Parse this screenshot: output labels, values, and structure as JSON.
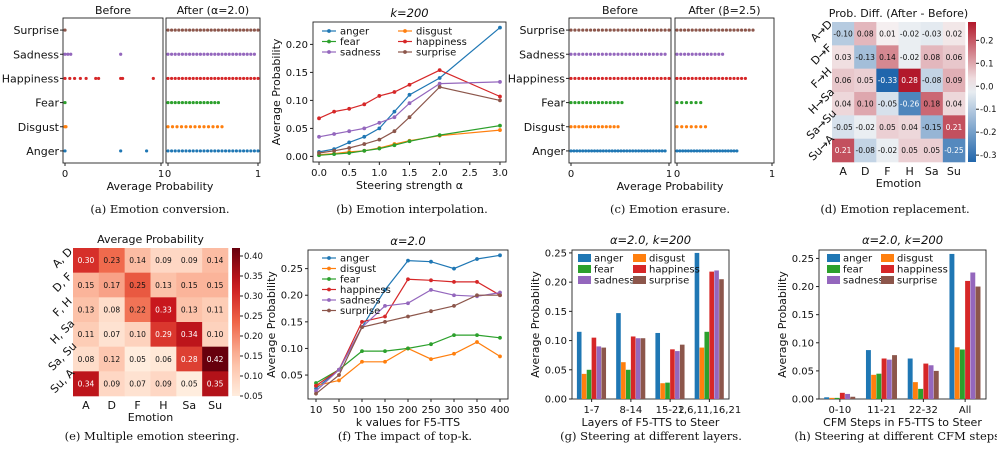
{
  "colors": {
    "anger": "#1f77b4",
    "disgust": "#ff7f0e",
    "fear": "#2ca02c",
    "happiness": "#d62728",
    "sadness": "#9467bd",
    "surprise": "#8c564b"
  },
  "chart_data": [
    {
      "id": "a",
      "type": "scatter",
      "caption": "(a) Emotion conversion.",
      "panel_titles": [
        "Before",
        "After (α=2.0)"
      ],
      "xlabel": "Average Probability",
      "categories": [
        "Anger",
        "Disgust",
        "Fear",
        "Happiness",
        "Sadness",
        "Surprise"
      ],
      "xlim": [
        0,
        1
      ],
      "xticks": [
        "0",
        "1"
      ],
      "before": {
        "Anger": [
          0.0,
          0.58,
          0.85
        ],
        "Disgust": [
          0.0,
          0.01
        ],
        "Fear": [
          0.0
        ],
        "Happiness": [
          0.0,
          0.05,
          0.1,
          0.16,
          0.22,
          0.32,
          0.35,
          0.58,
          0.6,
          0.92
        ],
        "Sadness": [
          0.0,
          0.03,
          0.06,
          0.58
        ],
        "Surprise": [
          0.0
        ]
      },
      "after": {
        "Anger": [
          0.0,
          0.04,
          0.08,
          0.12,
          0.16,
          0.2,
          0.24,
          0.28,
          0.32,
          0.36,
          0.4,
          0.44,
          0.48,
          0.52,
          0.56,
          0.6,
          0.64,
          0.68,
          0.72,
          0.76,
          0.8,
          0.84,
          0.88,
          0.92,
          0.96,
          1.0
        ],
        "Disgust": [
          0.0,
          0.05,
          0.1,
          0.15,
          0.2,
          0.25,
          0.3,
          0.35,
          0.4,
          0.45,
          0.5,
          0.55,
          0.6
        ],
        "Fear": [
          0.0,
          0.04,
          0.08,
          0.12,
          0.16,
          0.2,
          0.24,
          0.28,
          0.32,
          0.36,
          0.4,
          0.44,
          0.48,
          0.52,
          0.56
        ],
        "Happiness": [
          0.0,
          0.04,
          0.08,
          0.12,
          0.16,
          0.2,
          0.24,
          0.28,
          0.32,
          0.36,
          0.4,
          0.44,
          0.48,
          0.52,
          0.56,
          0.6,
          0.64,
          0.68,
          0.72,
          0.76,
          0.8,
          0.84,
          0.88,
          0.92,
          0.96,
          1.0
        ],
        "Sadness": [
          0.0,
          0.04,
          0.08,
          0.12,
          0.16,
          0.2,
          0.24,
          0.28,
          0.32,
          0.36,
          0.4,
          0.44,
          0.48,
          0.52,
          0.56,
          0.6,
          0.64,
          0.68,
          0.72,
          0.76,
          0.8,
          0.84,
          0.88,
          0.92,
          0.96
        ],
        "Surprise": [
          0.0,
          0.04,
          0.08,
          0.12,
          0.16,
          0.2,
          0.24,
          0.28,
          0.32,
          0.36,
          0.4,
          0.44,
          0.48,
          0.52,
          0.56,
          0.6,
          0.64,
          0.68,
          0.72,
          0.76,
          0.8,
          0.84,
          0.88,
          0.92,
          0.96,
          1.0
        ]
      }
    },
    {
      "id": "b",
      "type": "line",
      "title": "k=200",
      "caption": "(b) Emotion interpolation.",
      "xlabel": "Steering strength α",
      "ylabel": "Average Probability",
      "x": [
        0.0,
        0.25,
        0.5,
        0.75,
        1.0,
        1.25,
        1.5,
        2.0,
        3.0
      ],
      "xticks": [
        "0.0",
        "0.5",
        "1.0",
        "1.5",
        "2.0",
        "2.5",
        "3.0"
      ],
      "xlim": [
        -0.1,
        3.1
      ],
      "yticks": [
        "0.00",
        "0.05",
        "0.10",
        "0.15",
        "0.20"
      ],
      "ylim": [
        -0.01,
        0.24
      ],
      "series": [
        {
          "name": "anger",
          "values": [
            0.008,
            0.013,
            0.025,
            0.035,
            0.05,
            0.08,
            0.11,
            0.14,
            0.23
          ]
        },
        {
          "name": "disgust",
          "values": [
            0.003,
            0.005,
            0.008,
            0.01,
            0.015,
            0.022,
            0.028,
            0.037,
            0.047
          ]
        },
        {
          "name": "fear",
          "values": [
            0.002,
            0.004,
            0.006,
            0.01,
            0.014,
            0.02,
            0.027,
            0.038,
            0.055
          ]
        },
        {
          "name": "happiness",
          "values": [
            0.068,
            0.08,
            0.085,
            0.093,
            0.108,
            0.115,
            0.128,
            0.154,
            0.107
          ]
        },
        {
          "name": "sadness",
          "values": [
            0.035,
            0.04,
            0.045,
            0.05,
            0.06,
            0.07,
            0.095,
            0.13,
            0.133
          ]
        },
        {
          "name": "surprise",
          "values": [
            0.006,
            0.01,
            0.015,
            0.022,
            0.03,
            0.045,
            0.07,
            0.124,
            0.1
          ]
        }
      ],
      "legend": [
        "anger",
        "disgust",
        "fear",
        "happiness",
        "sadness",
        "surprise"
      ]
    },
    {
      "id": "c",
      "type": "scatter",
      "caption": "(c) Emotion erasure.",
      "panel_titles": [
        "Before",
        "After (β=2.5)"
      ],
      "xlabel": "Average Probability",
      "categories": [
        "Anger",
        "Disgust",
        "Fear",
        "Happiness",
        "Sadness",
        "Surprise"
      ],
      "xlim": [
        0,
        1
      ],
      "xticks": [
        "0",
        "1"
      ],
      "before": {
        "Anger": [
          0.0,
          0.03,
          0.06,
          0.09,
          0.12,
          0.15,
          0.18,
          0.21,
          0.24,
          0.27,
          0.3,
          0.33,
          0.36,
          0.39,
          0.42,
          0.45,
          0.48,
          0.51,
          0.54,
          0.57,
          0.6,
          0.63,
          0.66,
          0.69,
          0.72,
          0.75,
          0.78,
          0.81,
          0.84,
          0.87,
          0.9,
          0.93,
          0.96
        ],
        "Disgust": [
          0.0,
          0.04,
          0.08,
          0.12,
          0.16,
          0.2,
          0.24,
          0.28,
          0.32,
          0.36,
          0.4,
          0.44,
          0.48
        ],
        "Fear": [
          0.0,
          0.04,
          0.08,
          0.12,
          0.16,
          0.2,
          0.24,
          0.28,
          0.32,
          0.36,
          0.4,
          0.44,
          0.48,
          0.52
        ],
        "Happiness": [
          0.0,
          0.04,
          0.08,
          0.12,
          0.16,
          0.2,
          0.24,
          0.28,
          0.32,
          0.36,
          0.4,
          0.44,
          0.48,
          0.52,
          0.56,
          0.6,
          0.64,
          0.68,
          0.72,
          0.76,
          0.8,
          0.84,
          0.88,
          0.92,
          0.96,
          1.0
        ],
        "Sadness": [
          0.0,
          0.04,
          0.08,
          0.12,
          0.16,
          0.2,
          0.24,
          0.28,
          0.32,
          0.36,
          0.4,
          0.44,
          0.48,
          0.52,
          0.56,
          0.6,
          0.64,
          0.68,
          0.72,
          0.76,
          0.8,
          0.84,
          0.88,
          0.92,
          0.96
        ],
        "Surprise": [
          0.0,
          0.04,
          0.08,
          0.12,
          0.16,
          0.2,
          0.24,
          0.28,
          0.32,
          0.36,
          0.4,
          0.44,
          0.48,
          0.52,
          0.56,
          0.6,
          0.64,
          0.68,
          0.72,
          0.76,
          0.8,
          0.84,
          0.88,
          0.92,
          0.96,
          1.0
        ]
      },
      "after": {
        "Anger": [
          0.0,
          0.03,
          0.06,
          0.09,
          0.12,
          0.15,
          0.18,
          0.21,
          0.24,
          0.27,
          0.3,
          0.33,
          0.36,
          0.39,
          0.42,
          0.45,
          0.48,
          0.51,
          0.54,
          0.57,
          0.6,
          0.63
        ],
        "Disgust": [
          0.0,
          0.05,
          0.1,
          0.15,
          0.2,
          0.25,
          0.3
        ],
        "Fear": [
          0.0,
          0.05,
          0.1,
          0.15,
          0.2,
          0.25
        ],
        "Happiness": [
          0.0,
          0.04,
          0.08,
          0.12,
          0.16,
          0.2,
          0.24,
          0.28,
          0.32,
          0.36,
          0.4,
          0.44,
          0.48,
          0.52,
          0.56,
          0.6,
          0.64,
          0.68,
          0.72
        ],
        "Sadness": [
          0.0,
          0.04,
          0.08,
          0.12,
          0.16,
          0.2,
          0.24,
          0.28,
          0.32,
          0.36,
          0.4,
          0.44,
          0.48
        ],
        "Surprise": [
          0.0,
          0.04,
          0.08,
          0.12,
          0.16,
          0.2,
          0.24,
          0.28,
          0.32,
          0.36,
          0.4,
          0.44,
          0.48,
          0.52,
          0.56,
          0.6,
          0.64,
          0.68,
          0.72,
          0.76,
          0.8
        ]
      }
    },
    {
      "id": "d",
      "type": "heatmap",
      "title": "Prob. Diff. (After - Before)",
      "caption": "(d) Emotion replacement.",
      "xlabel": "Emotion",
      "columns": [
        "A",
        "D",
        "F",
        "H",
        "Sa",
        "Su"
      ],
      "rows": [
        "A→D",
        "D→F",
        "F→H",
        "H→Sa",
        "Sa→Su",
        "Su→A"
      ],
      "values": [
        [
          -0.1,
          0.08,
          0.01,
          -0.02,
          -0.03,
          0.02
        ],
        [
          0.03,
          -0.13,
          0.14,
          -0.02,
          0.08,
          0.06
        ],
        [
          0.06,
          0.05,
          -0.33,
          0.28,
          -0.08,
          0.09
        ],
        [
          0.04,
          0.1,
          -0.05,
          -0.26,
          0.18,
          0.04
        ],
        [
          -0.05,
          -0.02,
          0.05,
          0.04,
          -0.15,
          0.21
        ],
        [
          0.21,
          -0.08,
          -0.02,
          0.05,
          0.05,
          -0.25
        ]
      ],
      "labels": [
        [
          "-0.10",
          "0.08",
          "0.01",
          "-0.02",
          "-0.03",
          "0.02"
        ],
        [
          "0.03",
          "-0.13",
          "0.14",
          "-0.02",
          "0.08",
          "0.06"
        ],
        [
          "0.06",
          "0.05",
          "-0.33",
          "0.28",
          "-0.08",
          "0.09"
        ],
        [
          "0.04",
          "0.10",
          "-0.05",
          "-0.26",
          "0.18",
          "0.04"
        ],
        [
          "-0.05",
          "-0.02",
          "0.05",
          "0.04",
          "-0.15",
          "0.21"
        ],
        [
          "0.21",
          "-0.08",
          "-0.02",
          "0.05",
          "0.05",
          "-0.25"
        ]
      ],
      "colorbar": {
        "range": [
          -0.33,
          0.28
        ],
        "ticks": [
          "0.2",
          "0.1",
          "0.0",
          "-0.1",
          "-0.2",
          "-0.3"
        ]
      }
    },
    {
      "id": "e",
      "type": "heatmap",
      "title": "Average Probability",
      "caption": "(e) Multiple emotion steering.",
      "xlabel": "Emotion",
      "columns": [
        "A",
        "D",
        "F",
        "H",
        "Sa",
        "Su"
      ],
      "rows": [
        "A, D",
        "D, F",
        "F, H",
        "H, Sa",
        "Sa, Su",
        "Su, A"
      ],
      "values": [
        [
          0.3,
          0.23,
          0.14,
          0.09,
          0.09,
          0.14
        ],
        [
          0.15,
          0.17,
          0.25,
          0.13,
          0.15,
          0.15
        ],
        [
          0.13,
          0.08,
          0.22,
          0.33,
          0.13,
          0.11
        ],
        [
          0.11,
          0.07,
          0.1,
          0.29,
          0.34,
          0.1
        ],
        [
          0.08,
          0.12,
          0.05,
          0.06,
          0.28,
          0.42
        ],
        [
          0.34,
          0.09,
          0.07,
          0.09,
          0.05,
          0.35
        ]
      ],
      "labels": [
        [
          "0.30",
          "0.23",
          "0.14",
          "0.09",
          "0.09",
          "0.14"
        ],
        [
          "0.15",
          "0.17",
          "0.25",
          "0.13",
          "0.15",
          "0.15"
        ],
        [
          "0.13",
          "0.08",
          "0.22",
          "0.33",
          "0.13",
          "0.11"
        ],
        [
          "0.11",
          "0.07",
          "0.10",
          "0.29",
          "0.34",
          "0.10"
        ],
        [
          "0.08",
          "0.12",
          "0.05",
          "0.06",
          "0.28",
          "0.42"
        ],
        [
          "0.34",
          "0.09",
          "0.07",
          "0.09",
          "0.05",
          "0.35"
        ]
      ],
      "colorbar": {
        "range": [
          0.05,
          0.42
        ],
        "ticks": [
          "0.40",
          "0.35",
          "0.30",
          "0.25",
          "0.20",
          "0.15",
          "0.10",
          "0.05"
        ]
      }
    },
    {
      "id": "f",
      "type": "line",
      "title": "α=2.0",
      "caption": "(f) The impact of top-k.",
      "xlabel": "k values for F5-TTS",
      "ylabel": "Average Probability",
      "x": [
        "10",
        "50",
        "100",
        "150",
        "200",
        "250",
        "300",
        "350",
        "400"
      ],
      "yticks": [
        "0.05",
        "0.10",
        "0.15",
        "0.20",
        "0.25"
      ],
      "ylim": [
        0.005,
        0.285
      ],
      "series": [
        {
          "name": "anger",
          "values": [
            0.025,
            0.06,
            0.14,
            0.21,
            0.265,
            0.263,
            0.25,
            0.268,
            0.275
          ]
        },
        {
          "name": "disgust",
          "values": [
            0.03,
            0.04,
            0.075,
            0.075,
            0.1,
            0.08,
            0.09,
            0.112,
            0.085
          ]
        },
        {
          "name": "fear",
          "values": [
            0.035,
            0.06,
            0.095,
            0.095,
            0.1,
            0.108,
            0.125,
            0.125,
            0.12
          ]
        },
        {
          "name": "happiness",
          "values": [
            0.03,
            0.06,
            0.15,
            0.16,
            0.23,
            0.228,
            0.225,
            0.225,
            0.2
          ]
        },
        {
          "name": "sadness",
          "values": [
            0.02,
            0.06,
            0.14,
            0.18,
            0.185,
            0.21,
            0.2,
            0.198,
            0.205
          ]
        },
        {
          "name": "surprise",
          "values": [
            0.015,
            0.05,
            0.14,
            0.15,
            0.16,
            0.17,
            0.18,
            0.2,
            0.2
          ]
        }
      ],
      "legend": [
        "anger",
        "disgust",
        "fear",
        "happiness",
        "sadness",
        "surprise"
      ]
    },
    {
      "id": "g",
      "type": "bar",
      "title": "α=2.0, k=200",
      "caption": "(g) Steering at different layers.",
      "xlabel": "Layers of F5-TTS to Steer",
      "ylabel": "Average Probability",
      "categories": [
        "1-7",
        "8-14",
        "15-22",
        "1,6,11,16,21"
      ],
      "yticks": [
        "0.00",
        "0.05",
        "0.10",
        "0.15",
        "0.20",
        "0.25"
      ],
      "ylim": [
        0,
        0.255
      ],
      "series": [
        {
          "name": "anger",
          "values": [
            0.115,
            0.147,
            0.113,
            0.25
          ]
        },
        {
          "name": "disgust",
          "values": [
            0.043,
            0.063,
            0.027,
            0.088
          ]
        },
        {
          "name": "fear",
          "values": [
            0.05,
            0.05,
            0.028,
            0.115
          ]
        },
        {
          "name": "happiness",
          "values": [
            0.105,
            0.107,
            0.085,
            0.218
          ]
        },
        {
          "name": "sadness",
          "values": [
            0.09,
            0.104,
            0.082,
            0.22
          ]
        },
        {
          "name": "surprise",
          "values": [
            0.088,
            0.104,
            0.093,
            0.205
          ]
        }
      ],
      "legend": [
        "anger",
        "disgust",
        "fear",
        "happiness",
        "sadness",
        "surprise"
      ]
    },
    {
      "id": "h",
      "type": "bar",
      "title": "α=2.0, k=200",
      "caption": "(h) Steering at different CFM steps.",
      "xlabel": "CFM Steps in F5-TTS to Steer",
      "ylabel": "Average Probability",
      "categories": [
        "0-10",
        "11-21",
        "22-32",
        "All"
      ],
      "yticks": [
        "0.00",
        "0.05",
        "0.10",
        "0.15",
        "0.20",
        "0.25"
      ],
      "ylim": [
        0,
        0.265
      ],
      "series": [
        {
          "name": "anger",
          "values": [
            0.003,
            0.087,
            0.072,
            0.258
          ]
        },
        {
          "name": "disgust",
          "values": [
            0.002,
            0.043,
            0.03,
            0.092
          ]
        },
        {
          "name": "fear",
          "values": [
            0.002,
            0.045,
            0.018,
            0.088
          ]
        },
        {
          "name": "happiness",
          "values": [
            0.011,
            0.072,
            0.063,
            0.21
          ]
        },
        {
          "name": "sadness",
          "values": [
            0.009,
            0.07,
            0.06,
            0.225
          ]
        },
        {
          "name": "surprise",
          "values": [
            0.004,
            0.078,
            0.05,
            0.2
          ]
        }
      ],
      "legend": [
        "anger",
        "disgust",
        "fear",
        "happiness",
        "sadness",
        "surprise"
      ]
    }
  ]
}
